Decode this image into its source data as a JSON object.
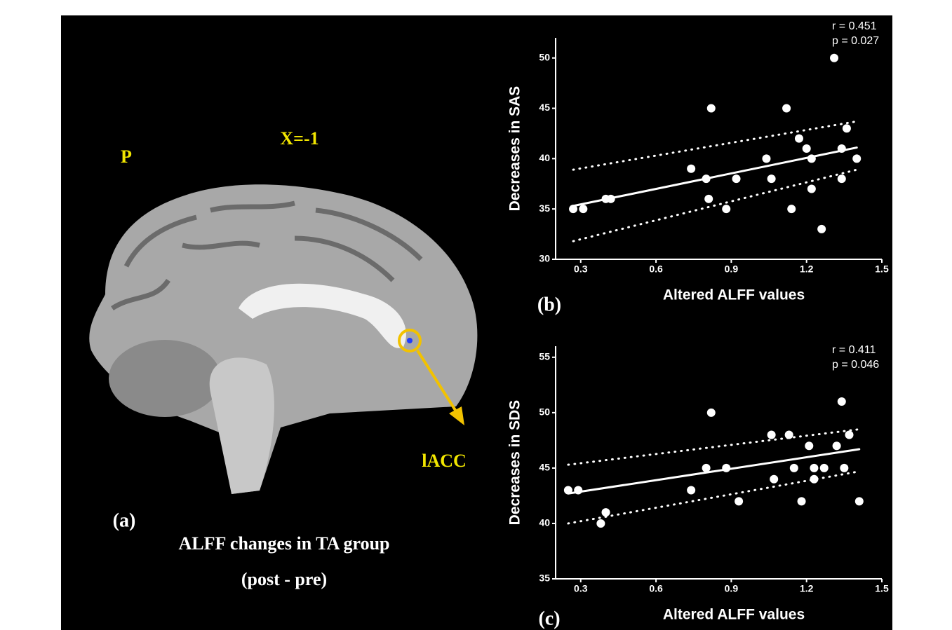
{
  "figure": {
    "panel_a": {
      "hemisphere_label": "P",
      "slice_label": "X=-1",
      "region_label": "lACC",
      "label": "(a)",
      "caption": "ALFF changes in TA group",
      "subcaption": "(post - pre)"
    }
  },
  "chart_data": [
    {
      "type": "scatter",
      "label": "(b)",
      "annotations": [
        "r = 0.451",
        "p = 0.027"
      ],
      "xlabel": "Altered ALFF values",
      "ylabel": "Decreases in SAS",
      "xlim": [
        0.2,
        1.5
      ],
      "xticks": [
        0.3,
        0.6,
        0.9,
        1.2,
        1.5
      ],
      "ylim": [
        30,
        52
      ],
      "yticks": [
        30,
        35,
        40,
        45,
        50
      ],
      "color": "#ffffff",
      "points": {
        "x": [
          0.27,
          0.31,
          0.4,
          0.42,
          0.74,
          0.8,
          0.82,
          0.81,
          0.88,
          0.92,
          1.04,
          1.06,
          1.12,
          1.14,
          1.17,
          1.2,
          1.22,
          1.22,
          1.26,
          1.31,
          1.34,
          1.34,
          1.36,
          1.4
        ],
        "y": [
          35,
          35,
          36,
          36,
          39,
          38,
          45,
          36,
          35,
          38,
          40,
          38,
          45,
          35,
          42,
          41,
          40,
          37,
          33,
          50,
          41,
          38,
          43,
          40
        ]
      },
      "fit": {
        "x": [
          0.27,
          1.4
        ],
        "y": [
          35.3,
          41.1
        ]
      },
      "band_upper": {
        "x": [
          0.27,
          1.4
        ],
        "y": [
          38.9,
          43.7
        ]
      },
      "band_lower": {
        "x": [
          0.27,
          1.4
        ],
        "y": [
          31.8,
          38.9
        ]
      }
    },
    {
      "type": "scatter",
      "label": "(c)",
      "annotations": [
        "r = 0.411",
        "p =  0.046"
      ],
      "xlabel": "Altered ALFF values",
      "ylabel": "Decreases in SDS",
      "xlim": [
        0.2,
        1.5
      ],
      "xticks": [
        0.3,
        0.6,
        0.9,
        1.2,
        1.5
      ],
      "ylim": [
        35,
        56
      ],
      "yticks": [
        35,
        40,
        45,
        50,
        55
      ],
      "color": "#ffffff",
      "points": {
        "x": [
          0.25,
          0.29,
          0.4,
          0.38,
          0.74,
          0.8,
          0.82,
          0.88,
          0.93,
          1.06,
          1.07,
          1.13,
          1.15,
          1.18,
          1.21,
          1.23,
          1.23,
          1.27,
          1.32,
          1.34,
          1.35,
          1.37,
          1.41
        ],
        "y": [
          43,
          43,
          41,
          40,
          43,
          45,
          50,
          45,
          42,
          48,
          44,
          48,
          45,
          42,
          47,
          45,
          44,
          45,
          47,
          51,
          45,
          48,
          42
        ]
      },
      "fit": {
        "x": [
          0.25,
          1.41
        ],
        "y": [
          42.7,
          46.7
        ]
      },
      "band_upper": {
        "x": [
          0.25,
          1.41
        ],
        "y": [
          45.3,
          48.5
        ]
      },
      "band_lower": {
        "x": [
          0.25,
          1.41
        ],
        "y": [
          40.0,
          44.7
        ]
      }
    }
  ]
}
